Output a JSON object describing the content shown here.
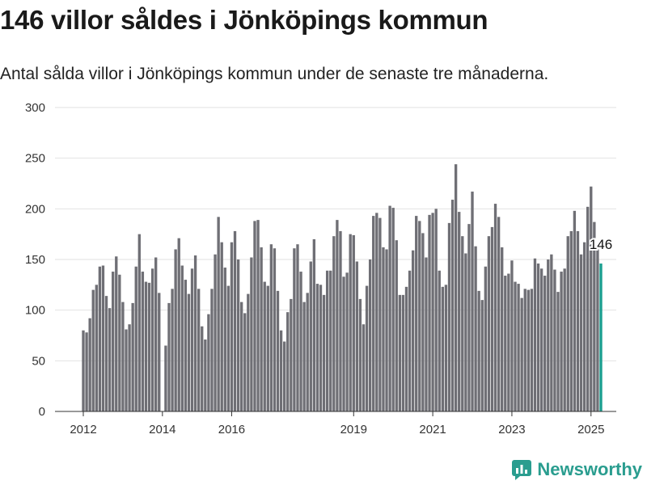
{
  "title": "146 villor såldes i Jönköpings kommun",
  "subtitle": "Antal sålda villor i Jönköpings kommun under de senaste tre månaderna.",
  "brand": "Newsworthy",
  "colors": {
    "bar": "#6f6f75",
    "highlight": "#1a9e8f",
    "grid": "#e2e2e2",
    "brand": "#2a9d8f"
  },
  "chart_data": {
    "type": "bar",
    "title": "",
    "xlabel": "",
    "ylabel": "",
    "ylim": [
      0,
      300
    ],
    "y_ticks": [
      0,
      50,
      100,
      150,
      200,
      250,
      300
    ],
    "x_tick_labels": [
      "2012",
      "2014",
      "2016",
      "2019",
      "2021",
      "2023",
      "2025"
    ],
    "grid": true,
    "highlight_label": "146",
    "series": [
      {
        "values": [
          80,
          78,
          92,
          120,
          125,
          143,
          144,
          114,
          102,
          138,
          153,
          135,
          108,
          81,
          86,
          107,
          143,
          175,
          138,
          128,
          127,
          141,
          152,
          117,
          0,
          65,
          107,
          121,
          160,
          171,
          144,
          130,
          116,
          141,
          154,
          121,
          84,
          71,
          96,
          121,
          155,
          192,
          167,
          142,
          124,
          167,
          178,
          150,
          108,
          97,
          116,
          152,
          188,
          189,
          162,
          128,
          124,
          165,
          161,
          119,
          80,
          69,
          98,
          111,
          161,
          165,
          138,
          108,
          117,
          148,
          170,
          126,
          125,
          115,
          139,
          139,
          173,
          189,
          178,
          133,
          137,
          175,
          174,
          148,
          111,
          86,
          124,
          150,
          193,
          196,
          191,
          162,
          160,
          203,
          201,
          169,
          115,
          115,
          123,
          139,
          159,
          193,
          188,
          176,
          152,
          194,
          196,
          200,
          139,
          123,
          125,
          186,
          209,
          244,
          197,
          173,
          156,
          185,
          217,
          163,
          119,
          110,
          143,
          173,
          182,
          205,
          192,
          162,
          134,
          136,
          149,
          128,
          126,
          112,
          121,
          120,
          121,
          151,
          146,
          141,
          134,
          150,
          155,
          140,
          118,
          138,
          141,
          173,
          178,
          198,
          178,
          155,
          167,
          202,
          222,
          187,
          160,
          146
        ]
      }
    ]
  }
}
